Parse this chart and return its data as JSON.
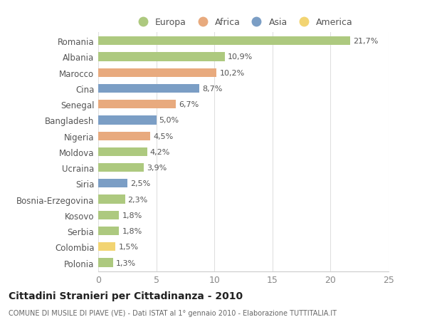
{
  "categories": [
    "Romania",
    "Albania",
    "Marocco",
    "Cina",
    "Senegal",
    "Bangladesh",
    "Nigeria",
    "Moldova",
    "Ucraina",
    "Siria",
    "Bosnia-Erzegovina",
    "Kosovo",
    "Serbia",
    "Colombia",
    "Polonia"
  ],
  "values": [
    21.7,
    10.9,
    10.2,
    8.7,
    6.7,
    5.0,
    4.5,
    4.2,
    3.9,
    2.5,
    2.3,
    1.8,
    1.8,
    1.5,
    1.3
  ],
  "labels": [
    "21,7%",
    "10,9%",
    "10,2%",
    "8,7%",
    "6,7%",
    "5,0%",
    "4,5%",
    "4,2%",
    "3,9%",
    "2,5%",
    "2,3%",
    "1,8%",
    "1,8%",
    "1,5%",
    "1,3%"
  ],
  "continent": [
    "Europa",
    "Europa",
    "Africa",
    "Asia",
    "Africa",
    "Asia",
    "Africa",
    "Europa",
    "Europa",
    "Asia",
    "Europa",
    "Europa",
    "Europa",
    "America",
    "Europa"
  ],
  "colors": {
    "Europa": "#adc97f",
    "Africa": "#e8aa7e",
    "Asia": "#7b9ec5",
    "America": "#f2d472"
  },
  "title": "Cittadini Stranieri per Cittadinanza - 2010",
  "subtitle": "COMUNE DI MUSILE DI PIAVE (VE) - Dati ISTAT al 1° gennaio 2010 - Elaborazione TUTTITALIA.IT",
  "xlim": [
    0,
    25
  ],
  "xticks": [
    0,
    5,
    10,
    15,
    20,
    25
  ],
  "background_color": "#ffffff",
  "grid_color": "#e0e0e0",
  "bar_height": 0.55
}
